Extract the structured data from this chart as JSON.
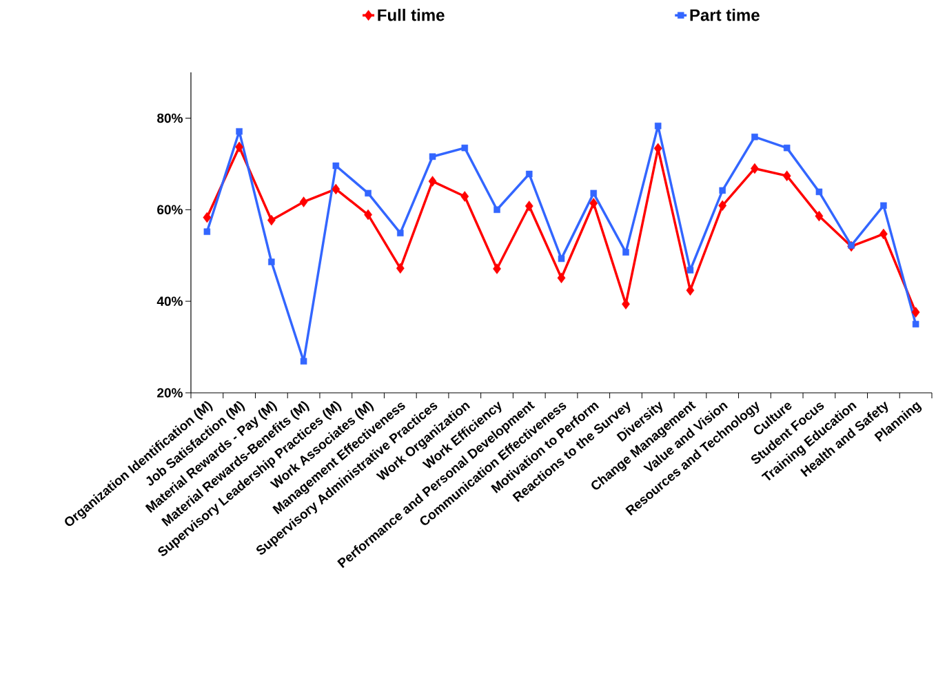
{
  "chart_data": {
    "type": "line",
    "categories": [
      "Organization Identification (M)",
      "Job Satisfaction (M)",
      "Material Rewards - Pay (M)",
      "Material Rewards-Benefits (M)",
      "Supervisory Leadership Practices (M)",
      "Work Associates (M)",
      "Management Effectiveness",
      "Supervisory Administrative Practices",
      "Work Organization",
      "Work Efficiency",
      "Performance and Personal Development",
      "Communication Effectiveness",
      "Motivation to Perform",
      "Reactions to the Survey",
      "Diversity",
      "Change Management",
      "Value and Vision",
      "Resources and Technology",
      "Culture",
      "Student Focus",
      "Training Education",
      "Health and Safety",
      "Planning"
    ],
    "series": [
      {
        "name": "Full time",
        "color": "#ff0000",
        "marker": "diamond",
        "values": [
          58.3,
          73.7,
          57.7,
          61.7,
          64.5,
          58.9,
          47.2,
          66.2,
          62.9,
          47.1,
          60.8,
          45.1,
          61.4,
          39.4,
          73.4,
          42.4,
          60.9,
          69.0,
          67.4,
          58.6,
          52.0,
          54.7,
          37.6
        ]
      },
      {
        "name": "Part time",
        "color": "#3366ff",
        "marker": "square",
        "values": [
          55.2,
          77.1,
          48.6,
          26.9,
          69.6,
          63.6,
          54.9,
          71.6,
          73.5,
          60.0,
          67.8,
          49.3,
          63.6,
          50.7,
          78.3,
          46.8,
          64.2,
          75.9,
          73.5,
          63.9,
          52.2,
          60.9,
          35.0
        ]
      }
    ],
    "ylim": [
      20,
      90
    ],
    "yticks": [
      {
        "value": 20,
        "label": "20%"
      },
      {
        "value": 40,
        "label": "40%"
      },
      {
        "value": 60,
        "label": "60%"
      },
      {
        "value": 80,
        "label": "80%"
      }
    ],
    "grid": false,
    "legend": "top",
    "line_style": "solid"
  }
}
